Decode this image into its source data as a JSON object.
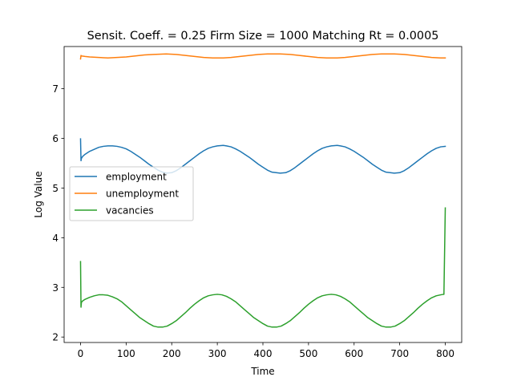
{
  "chart_data": {
    "type": "line",
    "title": "Sensit. Coeff. = 0.25 Firm Size = 1000 Matching Rt = 0.0005",
    "xlabel": "Time",
    "ylabel": "Log Value",
    "xlim": [
      -36,
      836
    ],
    "ylim": [
      1.89,
      7.85
    ],
    "xticks": [
      0,
      100,
      200,
      300,
      400,
      500,
      600,
      700,
      800
    ],
    "yticks": [
      2,
      3,
      4,
      5,
      6,
      7
    ],
    "grid": false,
    "legend_position": "center-left",
    "series": [
      {
        "name": "employment",
        "color": "#1f77b4",
        "x": [
          0,
          1,
          2,
          5,
          10,
          20,
          30,
          40,
          50,
          60,
          70,
          80,
          90,
          100,
          110,
          120,
          130,
          140,
          150,
          160,
          170,
          180,
          188,
          200,
          210,
          220,
          230,
          240,
          250,
          260,
          270,
          280,
          290,
          300,
          313,
          320,
          330,
          340,
          350,
          360,
          370,
          380,
          390,
          400,
          410,
          420,
          438,
          450,
          460,
          470,
          480,
          490,
          500,
          510,
          520,
          530,
          540,
          550,
          563,
          570,
          580,
          590,
          600,
          610,
          620,
          630,
          640,
          650,
          660,
          670,
          688,
          700,
          710,
          720,
          730,
          740,
          750,
          760,
          770,
          780,
          790,
          800
        ],
        "y": [
          5.99,
          5.55,
          5.6,
          5.64,
          5.68,
          5.74,
          5.78,
          5.82,
          5.84,
          5.85,
          5.85,
          5.84,
          5.82,
          5.79,
          5.74,
          5.68,
          5.62,
          5.55,
          5.48,
          5.42,
          5.36,
          5.32,
          5.3,
          5.31,
          5.35,
          5.41,
          5.48,
          5.55,
          5.62,
          5.69,
          5.75,
          5.8,
          5.83,
          5.85,
          5.86,
          5.85,
          5.83,
          5.79,
          5.74,
          5.68,
          5.62,
          5.55,
          5.48,
          5.42,
          5.36,
          5.32,
          5.3,
          5.31,
          5.35,
          5.41,
          5.48,
          5.55,
          5.62,
          5.69,
          5.75,
          5.8,
          5.83,
          5.85,
          5.86,
          5.85,
          5.83,
          5.79,
          5.74,
          5.68,
          5.62,
          5.55,
          5.48,
          5.42,
          5.36,
          5.32,
          5.3,
          5.31,
          5.35,
          5.41,
          5.48,
          5.55,
          5.62,
          5.69,
          5.75,
          5.8,
          5.83,
          5.84
        ]
      },
      {
        "name": "unemployment",
        "color": "#ff7f0e",
        "x": [
          0,
          1,
          2,
          10,
          20,
          40,
          60,
          80,
          100,
          120,
          140,
          160,
          188,
          210,
          230,
          250,
          270,
          290,
          313,
          330,
          350,
          370,
          390,
          410,
          438,
          460,
          480,
          500,
          520,
          540,
          563,
          580,
          600,
          620,
          640,
          660,
          688,
          710,
          730,
          750,
          770,
          790,
          800
        ],
        "y": [
          7.6,
          7.67,
          7.66,
          7.65,
          7.64,
          7.63,
          7.62,
          7.63,
          7.64,
          7.66,
          7.68,
          7.69,
          7.7,
          7.69,
          7.67,
          7.65,
          7.63,
          7.62,
          7.62,
          7.63,
          7.65,
          7.67,
          7.69,
          7.7,
          7.7,
          7.69,
          7.67,
          7.65,
          7.63,
          7.62,
          7.62,
          7.63,
          7.65,
          7.67,
          7.69,
          7.7,
          7.7,
          7.69,
          7.67,
          7.65,
          7.63,
          7.62,
          7.62
        ]
      },
      {
        "name": "vacancies",
        "color": "#2ca02c",
        "x": [
          0,
          1,
          2,
          5,
          10,
          20,
          30,
          40,
          50,
          60,
          70,
          80,
          90,
          100,
          110,
          120,
          130,
          140,
          150,
          160,
          170,
          180,
          190,
          200,
          210,
          220,
          230,
          240,
          250,
          260,
          270,
          280,
          290,
          300,
          310,
          320,
          330,
          340,
          350,
          360,
          370,
          380,
          390,
          400,
          410,
          420,
          430,
          440,
          450,
          460,
          470,
          480,
          490,
          500,
          510,
          520,
          530,
          540,
          550,
          560,
          570,
          580,
          590,
          600,
          610,
          620,
          630,
          640,
          650,
          660,
          670,
          680,
          690,
          700,
          710,
          720,
          730,
          740,
          750,
          760,
          770,
          780,
          790,
          796,
          797,
          800
        ],
        "y": [
          3.52,
          2.6,
          2.7,
          2.73,
          2.76,
          2.8,
          2.83,
          2.85,
          2.85,
          2.84,
          2.81,
          2.77,
          2.71,
          2.63,
          2.55,
          2.47,
          2.39,
          2.33,
          2.27,
          2.22,
          2.2,
          2.2,
          2.22,
          2.27,
          2.33,
          2.41,
          2.49,
          2.58,
          2.66,
          2.73,
          2.79,
          2.83,
          2.85,
          2.86,
          2.85,
          2.82,
          2.77,
          2.71,
          2.63,
          2.55,
          2.47,
          2.39,
          2.33,
          2.27,
          2.22,
          2.2,
          2.2,
          2.22,
          2.27,
          2.33,
          2.41,
          2.49,
          2.58,
          2.66,
          2.73,
          2.79,
          2.83,
          2.85,
          2.86,
          2.85,
          2.82,
          2.77,
          2.71,
          2.63,
          2.55,
          2.47,
          2.39,
          2.33,
          2.27,
          2.22,
          2.2,
          2.2,
          2.22,
          2.27,
          2.33,
          2.41,
          2.49,
          2.58,
          2.66,
          2.73,
          2.79,
          2.83,
          2.85,
          2.86,
          2.86,
          4.6
        ]
      }
    ]
  }
}
